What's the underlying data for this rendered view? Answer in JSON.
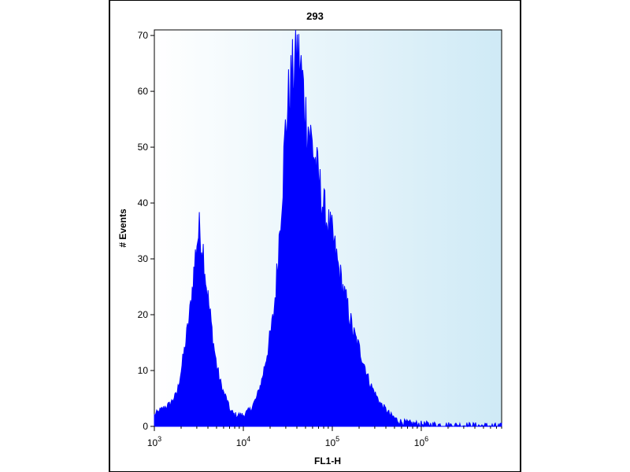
{
  "chart_data": {
    "type": "area",
    "title": "293",
    "xlabel": "FL1-H",
    "ylabel": "# Events",
    "x_scale": "log10",
    "xlim": [
      1000,
      8000000
    ],
    "ylim": [
      0,
      71
    ],
    "x_ticks": [
      {
        "value": 1000,
        "base": "10",
        "exp": "3"
      },
      {
        "value": 10000,
        "base": "10",
        "exp": "4"
      },
      {
        "value": 100000,
        "base": "10",
        "exp": "5"
      },
      {
        "value": 1000000,
        "base": "10",
        "exp": "6"
      }
    ],
    "y_ticks": [
      0,
      10,
      20,
      30,
      40,
      50,
      60,
      70
    ],
    "grid": false,
    "series": [
      {
        "color": "#0000ff",
        "x": [
          1000,
          1200,
          1500,
          1800,
          2000,
          2200,
          2500,
          2800,
          3000,
          3200,
          3400,
          3600,
          3800,
          4000,
          4300,
          4600,
          5000,
          5500,
          6000,
          6500,
          7000,
          8000,
          9000,
          10000,
          12000,
          14000,
          16000,
          18000,
          20000,
          22000,
          24000,
          26000,
          28000,
          30000,
          33000,
          36000,
          40000,
          43000,
          46000,
          50000,
          55000,
          60000,
          65000,
          70000,
          80000,
          90000,
          100000,
          115000,
          130000,
          150000,
          170000,
          200000,
          230000,
          260000,
          300000,
          350000,
          400000,
          450000,
          500000,
          550000,
          600000,
          700000,
          800000,
          1000000,
          1500000,
          2000000,
          3000000,
          5000000,
          8000000
        ],
        "y": [
          2,
          3,
          4,
          6,
          10,
          14,
          20,
          28,
          33,
          35,
          33,
          31,
          26,
          23,
          19,
          15,
          11,
          8,
          6,
          5,
          3,
          2,
          2,
          2,
          3,
          5,
          8,
          12,
          16,
          20,
          28,
          37,
          45,
          54,
          60,
          63,
          67,
          65,
          62,
          56,
          53,
          50,
          47,
          44,
          39,
          36,
          34,
          29,
          25,
          21,
          17,
          14,
          11,
          8,
          6,
          4,
          3,
          2,
          1.5,
          1,
          0.8,
          0.6,
          0.5,
          0.4,
          0.3,
          0.2,
          0.2,
          0.1,
          0
        ]
      }
    ]
  }
}
